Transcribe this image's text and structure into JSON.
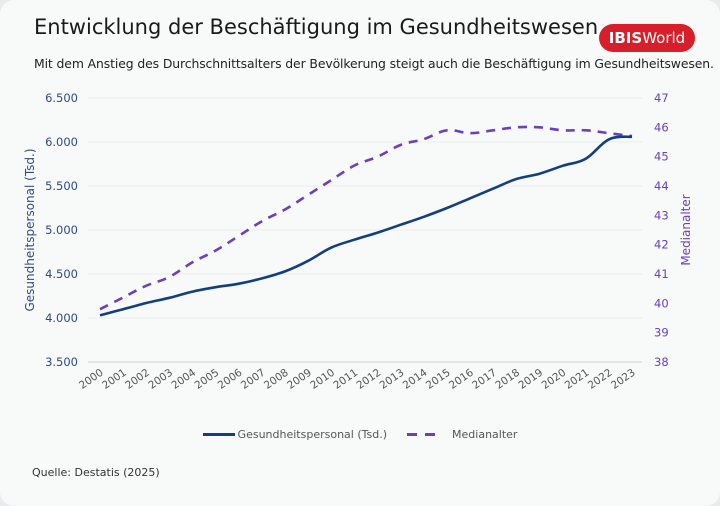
{
  "header": {
    "title": "Entwicklung der Beschäftigung im Gesundheitswesen",
    "subtitle": "Mit dem Anstieg des Durchschnittsalters der Bevölkerung steigt auch die Beschäftigung im Gesundheitswesen.",
    "logo_bold": "IBIS",
    "logo_regular": "World",
    "logo_color": "#d61f2a"
  },
  "footer": {
    "source": "Quelle: Destatis (2025)"
  },
  "chart_data": {
    "type": "line",
    "title": "Entwicklung der Beschäftigung im Gesundheitswesen",
    "subtitle": "Mit dem Anstieg des Durchschnittsalters der Bevölkerung steigt auch die Beschäftigung im Gesundheitswesen.",
    "xlabel": "",
    "x": [
      "2000",
      "2001",
      "2002",
      "2003",
      "2004",
      "2005",
      "2006",
      "2007",
      "2008",
      "2009",
      "2010",
      "2011",
      "2012",
      "2013",
      "2014",
      "2015",
      "2016",
      "2017",
      "2018",
      "2019",
      "2020",
      "2021",
      "2022",
      "2023"
    ],
    "y_left": {
      "label": "Gesundheitspersonal (Tsd.)",
      "ylim": [
        3500,
        6500
      ],
      "ticks": [
        3500,
        4000,
        4500,
        5000,
        5500,
        6000,
        6500
      ],
      "tick_labels": [
        "3.500",
        "4.000",
        "4.500",
        "5.000",
        "5.500",
        "6.000",
        "6.500"
      ],
      "color": "#2d4b87"
    },
    "y_right": {
      "label": "Medianalter",
      "ylim": [
        38,
        47
      ],
      "ticks": [
        38,
        39,
        40,
        41,
        42,
        43,
        44,
        45,
        46,
        47
      ],
      "tick_labels": [
        "38",
        "39",
        "40",
        "41",
        "42",
        "43",
        "44",
        "45",
        "46",
        "47"
      ],
      "color": "#6b3fc0"
    },
    "series": [
      {
        "name": "Gesundheitspersonal (Tsd.)",
        "axis": "left",
        "style": "solid",
        "color": "#123e82",
        "values": [
          4030,
          4100,
          4170,
          4230,
          4300,
          4350,
          4390,
          4450,
          4530,
          4650,
          4800,
          4890,
          4970,
          5060,
          5150,
          5250,
          5360,
          5470,
          5580,
          5640,
          5730,
          5810,
          6030,
          6060
        ]
      },
      {
        "name": "Medianalter",
        "axis": "right",
        "style": "dashed",
        "color": "#6b3fc0",
        "values": [
          39.8,
          40.2,
          40.6,
          40.9,
          41.4,
          41.8,
          42.3,
          42.8,
          43.2,
          43.7,
          44.2,
          44.7,
          45.0,
          45.4,
          45.6,
          45.9,
          45.8,
          45.9,
          46.0,
          46.0,
          45.9,
          45.9,
          45.8,
          45.7
        ]
      }
    ],
    "grid": true,
    "legend": {
      "position": "bottom-center",
      "entries": [
        "Gesundheitspersonal (Tsd.)",
        "Medianalter"
      ]
    }
  }
}
